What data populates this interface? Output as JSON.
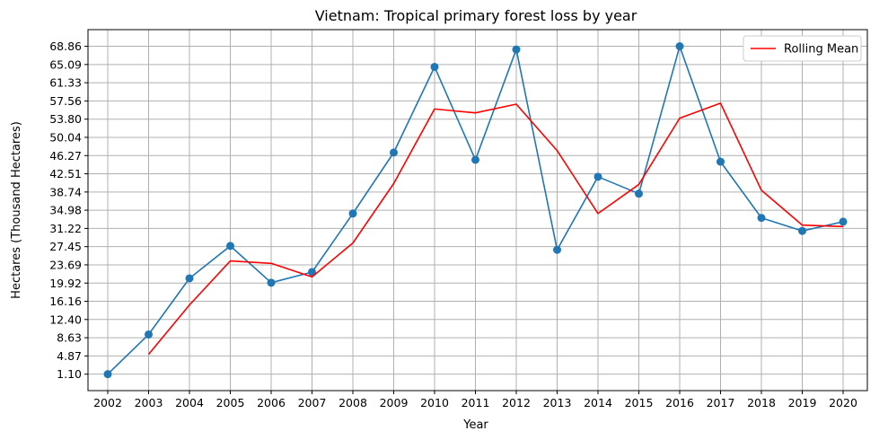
{
  "chart_data": {
    "type": "line",
    "title": "Vietnam: Tropical primary forest loss by year",
    "xlabel": "Year",
    "ylabel": "Hectares (Thousand Hectares)",
    "x": [
      "2002",
      "2003",
      "2004",
      "2005",
      "2006",
      "2007",
      "2008",
      "2009",
      "2010",
      "2011",
      "2012",
      "2013",
      "2014",
      "2015",
      "2016",
      "2017",
      "2018",
      "2019",
      "2020"
    ],
    "yticks": [
      "1.10",
      "4.87",
      "8.63",
      "12.40",
      "16.16",
      "19.92",
      "23.69",
      "27.45",
      "31.22",
      "34.98",
      "38.74",
      "42.51",
      "46.27",
      "50.04",
      "53.80",
      "57.56",
      "61.33",
      "65.09",
      "68.86"
    ],
    "ylim": [
      -2.3,
      72.3
    ],
    "grid": true,
    "legend_position": "top-right",
    "series": [
      {
        "name": "",
        "color": "#1f77b4",
        "marker": "circle",
        "values": [
          1.1,
          9.3,
          20.9,
          27.6,
          20.0,
          22.2,
          34.3,
          46.9,
          64.6,
          45.4,
          68.2,
          26.8,
          41.9,
          38.4,
          68.86,
          45.0,
          33.4,
          30.7,
          32.6
        ]
      },
      {
        "name": "Rolling Mean",
        "color": "#ff0000",
        "marker": "none",
        "values": [
          null,
          5.2,
          15.4,
          24.5,
          24.0,
          21.2,
          28.2,
          40.5,
          55.9,
          55.1,
          56.9,
          47.3,
          34.3,
          40.3,
          54.0,
          57.1,
          39.1,
          31.9,
          31.6
        ]
      }
    ]
  }
}
